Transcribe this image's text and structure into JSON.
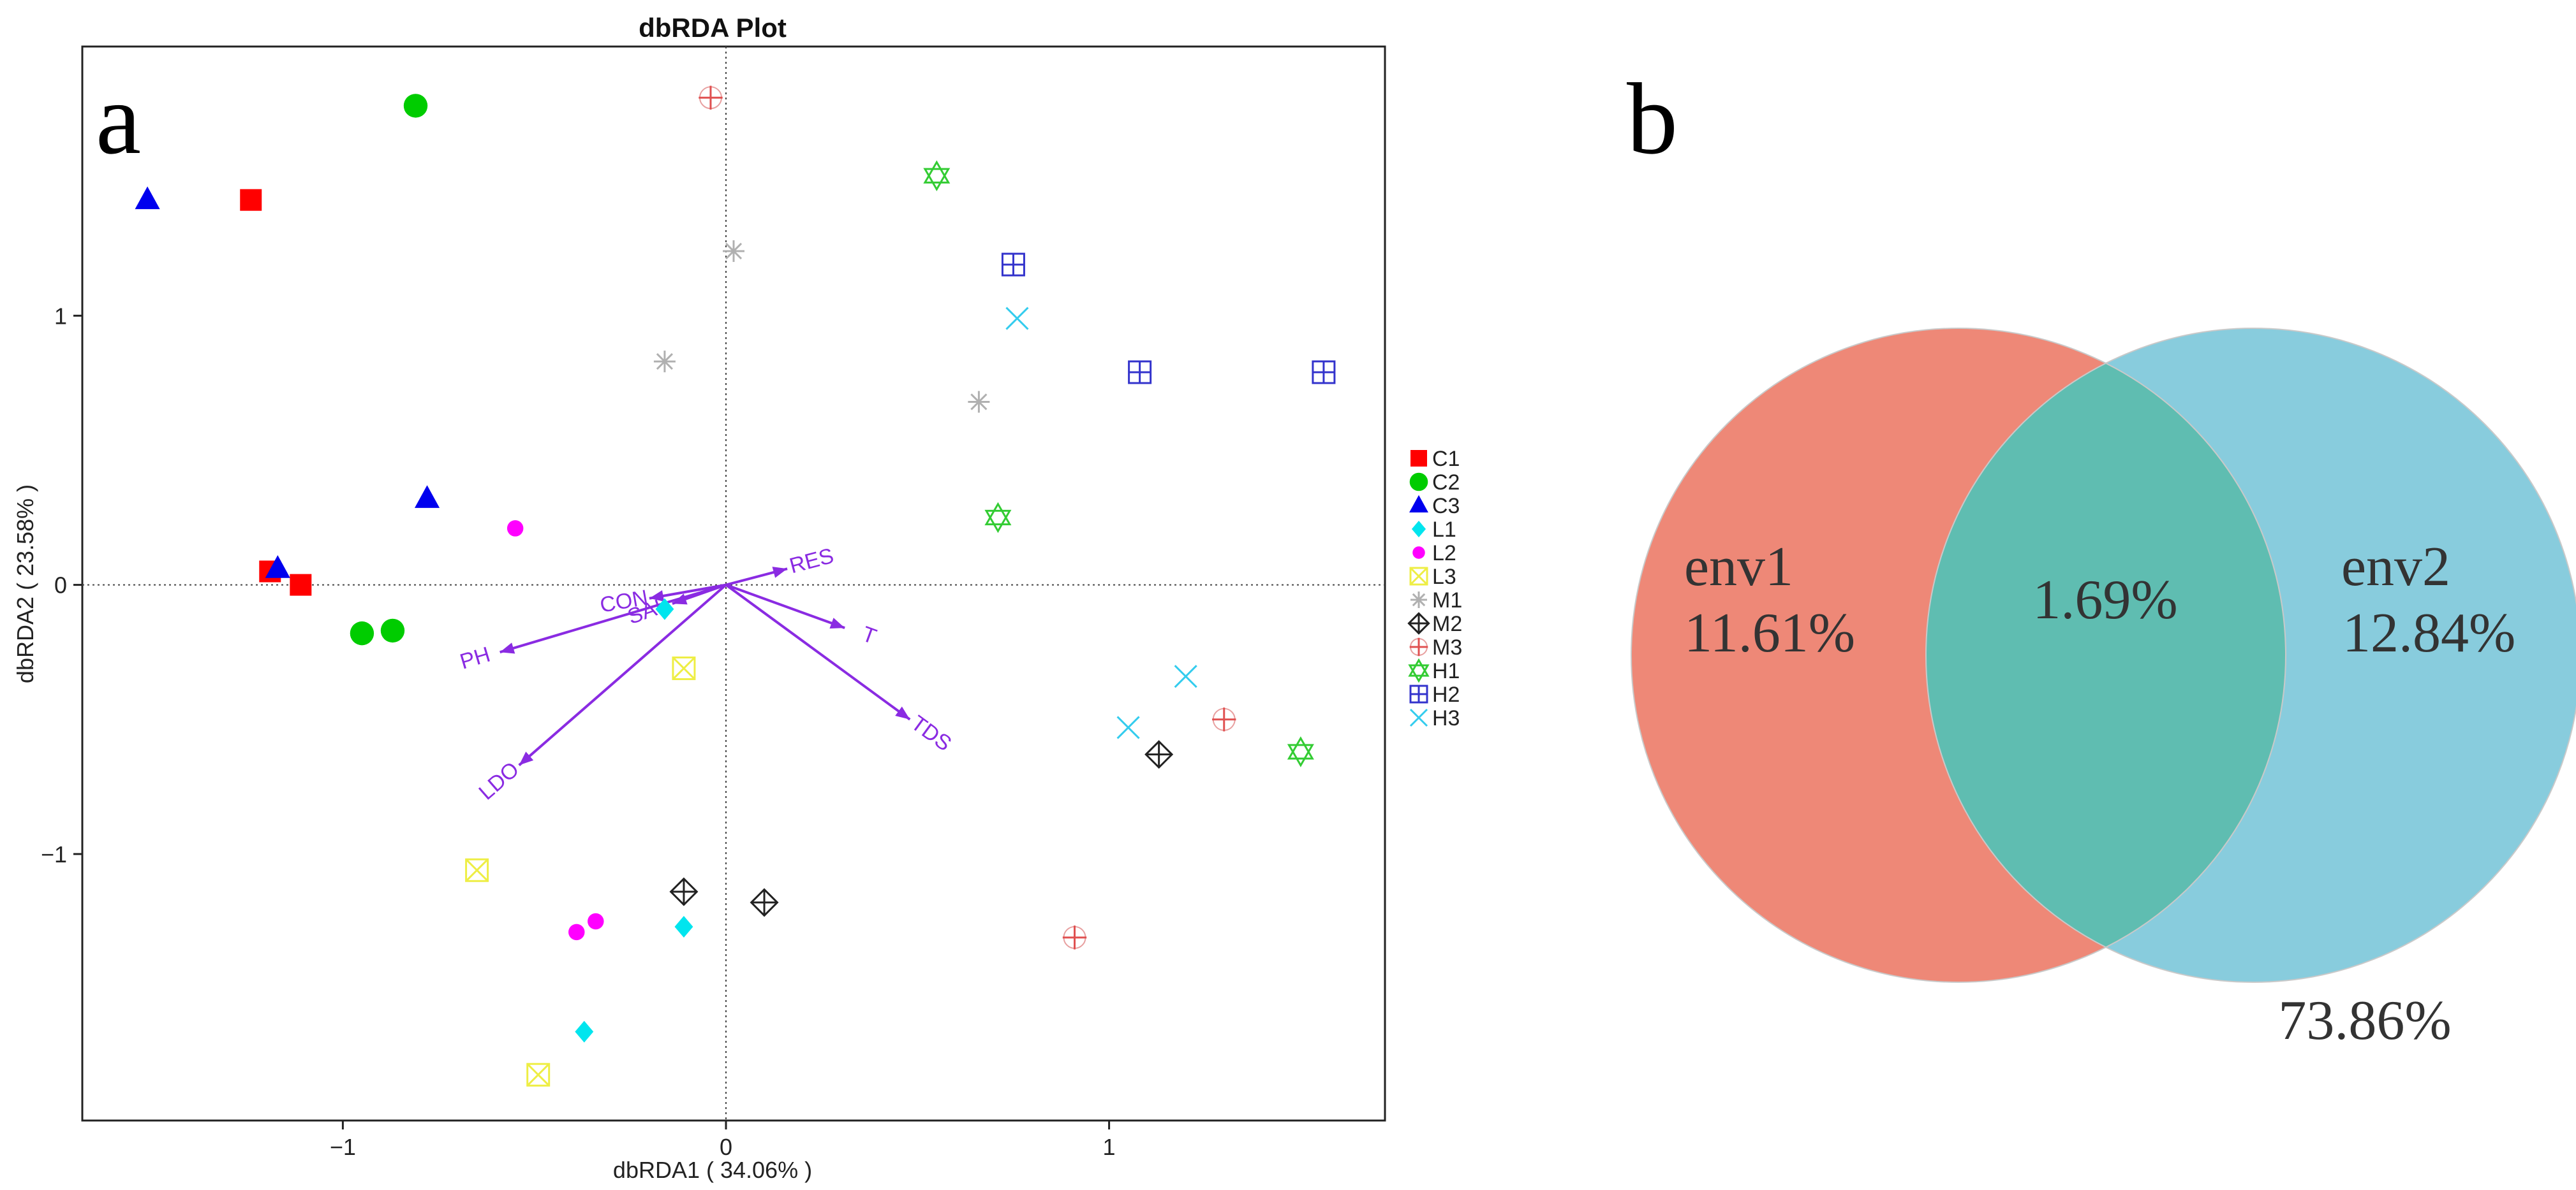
{
  "panels": {
    "a": "a",
    "b": "b"
  },
  "chart_data": [
    {
      "type": "scatter",
      "title": "dbRDA Plot",
      "xlabel": "dbRDA1 ( 34.06% )",
      "ylabel": "dbRDA2 ( 23.58% )",
      "xlim": [
        -1.68,
        1.72
      ],
      "ylim": [
        -1.99,
        2.0
      ],
      "x_ticks": [
        -1,
        0,
        1
      ],
      "y_ticks": [
        -1,
        0,
        1
      ],
      "reference_lines": {
        "x": 0,
        "y": 0,
        "style": "dotted"
      },
      "legend_position": "right",
      "series": [
        {
          "name": "C1",
          "marker": "square",
          "color": "#ff0000",
          "points": [
            [
              -1.24,
              1.43
            ],
            [
              -1.19,
              0.05
            ],
            [
              -1.11,
              0.0
            ]
          ]
        },
        {
          "name": "C2",
          "marker": "circle",
          "color": "#00cc00",
          "points": [
            [
              -0.81,
              1.78
            ],
            [
              -0.95,
              -0.18
            ],
            [
              -0.87,
              -0.17
            ]
          ]
        },
        {
          "name": "C3",
          "marker": "triangle",
          "color": "#0000ee",
          "points": [
            [
              -1.51,
              1.43
            ],
            [
              -0.78,
              0.32
            ],
            [
              -1.17,
              0.06
            ]
          ]
        },
        {
          "name": "L1",
          "marker": "diamond",
          "color": "#00e5ee",
          "points": [
            [
              -0.11,
              -1.27
            ],
            [
              -0.37,
              -1.66
            ],
            [
              -0.16,
              -0.09
            ]
          ]
        },
        {
          "name": "L2",
          "marker": "dot",
          "color": "#ff00ff",
          "points": [
            [
              -0.55,
              0.21
            ],
            [
              -0.39,
              -1.29
            ],
            [
              -0.34,
              -1.25
            ]
          ]
        },
        {
          "name": "L3",
          "marker": "square-x",
          "color": "#eeee44",
          "points": [
            [
              -0.65,
              -1.06
            ],
            [
              -0.49,
              -1.82
            ],
            [
              -0.11,
              -0.31
            ]
          ]
        },
        {
          "name": "M1",
          "marker": "asterisk",
          "color": "#b0b0b0",
          "points": [
            [
              0.02,
              1.24
            ],
            [
              -0.16,
              0.83
            ],
            [
              0.66,
              0.68
            ]
          ]
        },
        {
          "name": "M2",
          "marker": "diamond-plus",
          "color": "#222222",
          "points": [
            [
              -0.11,
              -1.14
            ],
            [
              0.1,
              -1.18
            ],
            [
              1.13,
              -0.63
            ]
          ]
        },
        {
          "name": "M3",
          "marker": "circle-plus",
          "color": "#e05050",
          "points": [
            [
              -0.04,
              1.81
            ],
            [
              0.91,
              -1.31
            ],
            [
              1.3,
              -0.5
            ]
          ]
        },
        {
          "name": "H1",
          "marker": "star-of-david",
          "color": "#33cc33",
          "points": [
            [
              0.55,
              1.52
            ],
            [
              0.71,
              0.25
            ],
            [
              1.5,
              -0.62
            ]
          ]
        },
        {
          "name": "H2",
          "marker": "square-plus",
          "color": "#3333cc",
          "points": [
            [
              0.75,
              1.19
            ],
            [
              1.08,
              0.79
            ],
            [
              1.56,
              0.79
            ]
          ]
        },
        {
          "name": "H3",
          "marker": "x",
          "color": "#33ccee",
          "points": [
            [
              0.76,
              0.99
            ],
            [
              1.05,
              -0.53
            ],
            [
              1.2,
              -0.34
            ]
          ]
        }
      ],
      "vectors": {
        "color": "#8a2be2",
        "items": [
          {
            "label": "RES",
            "x": 0.16,
            "y": 0.06
          },
          {
            "label": "T",
            "x": 0.31,
            "y": -0.16
          },
          {
            "label": "TDS",
            "x": 0.48,
            "y": -0.5
          },
          {
            "label": "PH",
            "x": -0.59,
            "y": -0.25
          },
          {
            "label": "LDO",
            "x": -0.54,
            "y": -0.67
          },
          {
            "label": "CON",
            "x": -0.2,
            "y": -0.05
          },
          {
            "label": "SAL",
            "x": -0.14,
            "y": -0.07
          }
        ]
      }
    },
    {
      "type": "venn",
      "sets": [
        {
          "name": "env1",
          "value": "11.61%",
          "color": "#ee8877"
        },
        {
          "name": "env2",
          "value": "12.84%",
          "color": "#88ccdd"
        }
      ],
      "intersection": "1.69%",
      "intersection_color": "#5fbdb1",
      "unexplained": "73.86%"
    }
  ]
}
